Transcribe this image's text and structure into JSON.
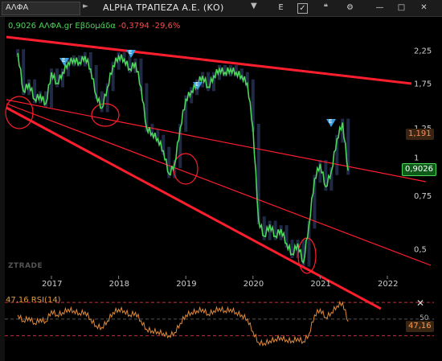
{
  "header": {
    "symbol": "ΑΛΦΑ",
    "title": "ALPHA ΤΡΑΠΕΖΑ Α.Ε. (ΚΟ)",
    "mode_label": "E"
  },
  "price_info": {
    "price": "0,9026",
    "symbol": "ΑΛΦΑ.gr",
    "period": "Εβδομάδα",
    "change": "-0,3794",
    "change_pct": "-29,6%"
  },
  "watermark": "ZTRADE",
  "rsi": {
    "label": "47,16 RSI(14)",
    "value_tag": "47,16",
    "level_label": "50"
  },
  "tags": {
    "last_price": "0,9026",
    "prev_level": "1,191"
  },
  "markers": [
    "E",
    "E",
    "E",
    "E"
  ],
  "colors": {
    "price": "#4cd65a",
    "trend": "#ff1e2d",
    "rsi": "#e08a3a",
    "candle": "#3a4a80"
  },
  "chart_data": {
    "type": "line",
    "x": [
      "2016-07",
      "2016-08",
      "2016-09",
      "2016-10",
      "2016-11",
      "2016-12",
      "2017-01",
      "2017-02",
      "2017-03",
      "2017-04",
      "2017-05",
      "2017-06",
      "2017-07",
      "2017-08",
      "2017-09",
      "2017-10",
      "2017-11",
      "2017-12",
      "2018-01",
      "2018-02",
      "2018-03",
      "2018-04",
      "2018-05",
      "2018-06",
      "2018-07",
      "2018-08",
      "2018-09",
      "2018-10",
      "2018-11",
      "2018-12",
      "2019-01",
      "2019-02",
      "2019-03",
      "2019-04",
      "2019-05",
      "2019-06",
      "2019-07",
      "2019-08",
      "2019-09",
      "2019-10",
      "2019-11",
      "2019-12",
      "2020-01",
      "2020-02",
      "2020-03",
      "2020-04",
      "2020-05",
      "2020-06",
      "2020-07",
      "2020-08",
      "2020-09",
      "2020-10",
      "2020-11",
      "2020-12",
      "2021-01",
      "2021-02",
      "2021-03",
      "2021-04",
      "2021-05",
      "2021-06"
    ],
    "series": [
      {
        "values": [
          2.2,
          1.65,
          1.75,
          1.55,
          1.6,
          1.5,
          1.9,
          1.75,
          1.9,
          2.05,
          2.1,
          2.05,
          2.15,
          1.95,
          1.6,
          1.45,
          1.7,
          2.0,
          2.15,
          2.1,
          1.95,
          2.05,
          1.7,
          1.25,
          1.2,
          1.15,
          1.05,
          0.88,
          0.95,
          1.25,
          1.55,
          1.65,
          1.75,
          1.85,
          1.7,
          1.85,
          1.95,
          1.9,
          1.95,
          1.9,
          1.85,
          1.75,
          1.25,
          0.62,
          0.55,
          0.6,
          0.55,
          0.58,
          0.52,
          0.48,
          0.52,
          0.45,
          0.6,
          0.85,
          0.95,
          0.8,
          0.9,
          1.15,
          1.3,
          0.9026
        ]
      },
      {
        "name": "RSI(14)",
        "values": [
          55,
          48,
          52,
          45,
          50,
          47,
          60,
          55,
          58,
          62,
          60,
          57,
          59,
          50,
          42,
          40,
          48,
          58,
          62,
          60,
          55,
          58,
          48,
          38,
          36,
          35,
          33,
          30,
          34,
          45,
          55,
          58,
          60,
          62,
          56,
          60,
          63,
          60,
          62,
          58,
          55,
          50,
          35,
          22,
          21,
          24,
          26,
          28,
          25,
          24,
          27,
          23,
          32,
          55,
          62,
          52,
          58,
          66,
          70,
          47.16
        ]
      }
    ],
    "ylim": [
      0.42,
      2.5
    ],
    "yscale": "log",
    "yticks": [
      "2,25",
      "1,75",
      "1,25",
      "1",
      "0,75",
      "0,5"
    ],
    "xticks": [
      "2017",
      "2018",
      "2019",
      "2020",
      "2021",
      "2022"
    ],
    "rsi_range": [
      20,
      75
    ],
    "rsi_lines": [
      70,
      50,
      30
    ],
    "grid": false,
    "legend": "none"
  }
}
